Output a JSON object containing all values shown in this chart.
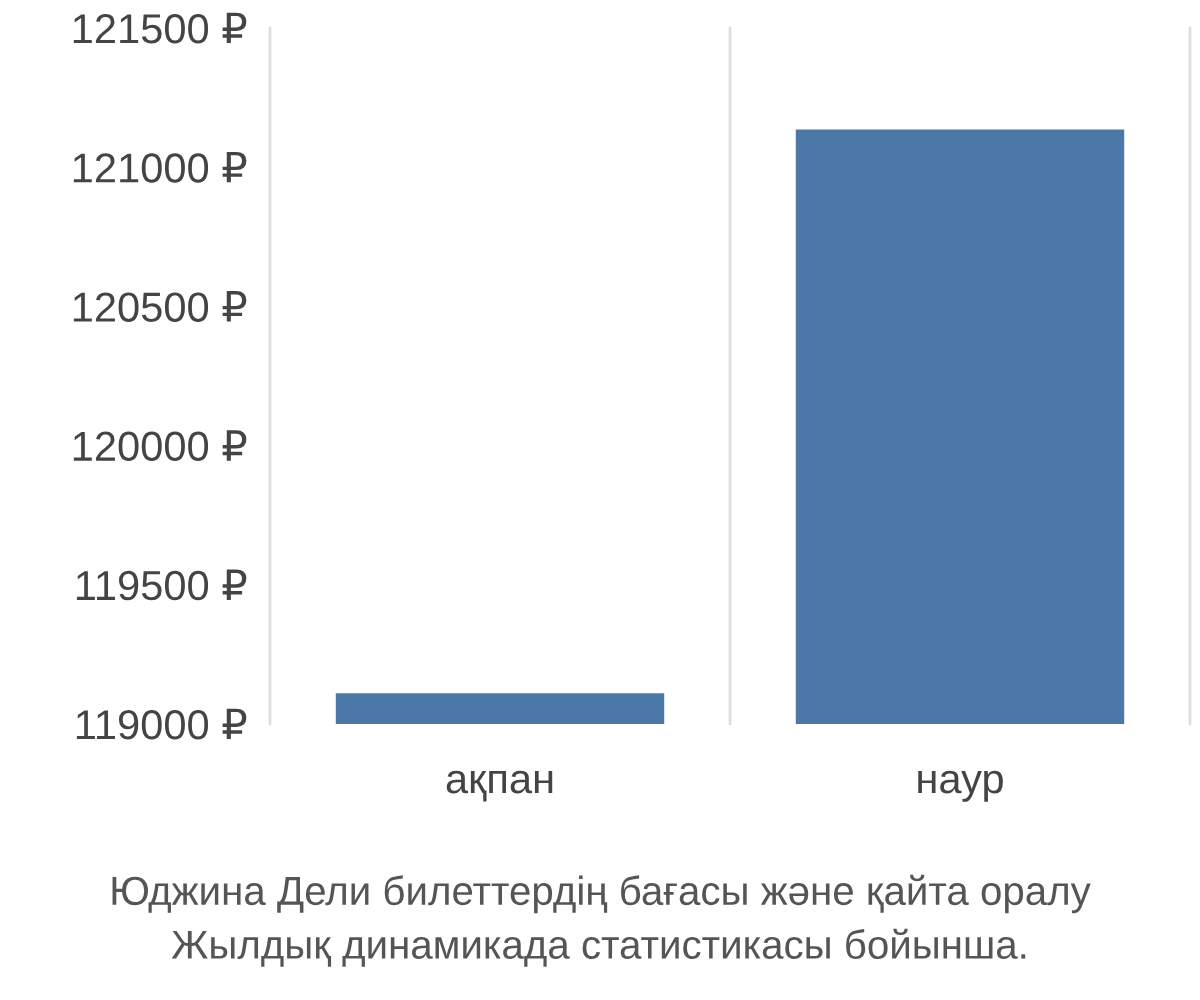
{
  "chart_data": {
    "type": "bar",
    "categories": [
      "ақпан",
      "наур"
    ],
    "values": [
      119115,
      121140
    ],
    "color": "#4c78a8",
    "ylim": [
      119000,
      121500
    ],
    "yticks": [
      {
        "value": 119000,
        "label": "119000 ₽"
      },
      {
        "value": 119500,
        "label": "119500 ₽"
      },
      {
        "value": 120000,
        "label": "120000 ₽"
      },
      {
        "value": 120500,
        "label": "120500 ₽"
      },
      {
        "value": 121000,
        "label": "121000 ₽"
      },
      {
        "value": 121500,
        "label": "121500 ₽"
      }
    ],
    "grid": "x",
    "annotations": [
      "Юджина Дели билеттердің бағасы және қайта оралу",
      "Жылдық динамикада статистикасы бойынша."
    ]
  }
}
